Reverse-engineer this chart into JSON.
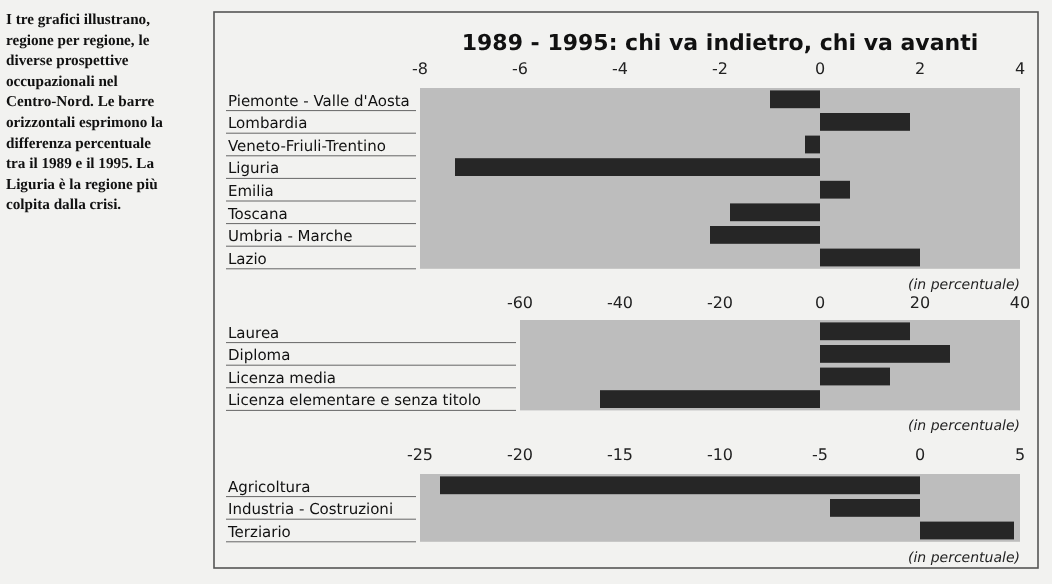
{
  "chart_data": [
    {
      "type": "bar",
      "orientation": "horizontal",
      "title": "1989 - 1995: chi va indietro, chi va avanti",
      "categories": [
        "Piemonte - Valle d'Aosta",
        "Lombardia",
        "Veneto-Friuli-Trentino",
        "Liguria",
        "Emilia",
        "Toscana",
        "Umbria - Marche",
        "Lazio"
      ],
      "values": [
        -1.0,
        1.8,
        -0.3,
        -7.3,
        0.6,
        -1.8,
        -2.2,
        2.0
      ],
      "color": "#262626",
      "xlim": [
        -8,
        4
      ],
      "xticks": [
        -8,
        -6,
        -4,
        -2,
        0,
        2,
        4
      ],
      "annotations": [
        "I tre grafici illustrano, regione per regione, le diverse prospettive occupazionali nel Centro-Nord. Le barre orizzontali esprimono la differenza percentuale tra il 1989 e il 1995. La Liguria è la regione più colpita dalla crisi.",
        "(in percentuale)"
      ]
    },
    {
      "type": "bar",
      "orientation": "horizontal",
      "categories": [
        "Laurea",
        "Diploma",
        "Licenza media",
        "Licenza elementare e senza titolo"
      ],
      "values": [
        18,
        26,
        14,
        -44
      ],
      "color": "#262626",
      "xlim": [
        -60,
        40
      ],
      "xticks": [
        -60,
        -40,
        -20,
        0,
        20,
        40
      ],
      "annotations": [
        "(in percentuale)"
      ]
    },
    {
      "type": "bar",
      "orientation": "horizontal",
      "categories": [
        "Agricoltura",
        "Industria - Costruzioni",
        "Terziario"
      ],
      "values": [
        -24,
        -4.5,
        4.7
      ],
      "color": "#262626",
      "xlim": [
        -25,
        5
      ],
      "xticks": [
        -25,
        -20,
        -15,
        -10,
        -5,
        0,
        5
      ],
      "annotations": [
        "(in percentuale)"
      ]
    }
  ]
}
